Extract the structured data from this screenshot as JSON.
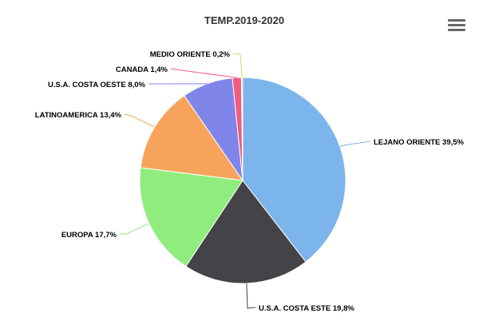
{
  "chart_data": {
    "type": "pie",
    "title": "TEMP.2019-2020",
    "slices": [
      {
        "name": "LEJANO ORIENTE",
        "value": 39.5,
        "label": "LEJANO ORIENTE 39,5%",
        "color": "#7cb5ec"
      },
      {
        "name": "U.S.A. COSTA ESTE",
        "value": 19.8,
        "label": "U.S.A. COSTA ESTE 19,8%",
        "color": "#434348"
      },
      {
        "name": "EUROPA",
        "value": 17.7,
        "label": "EUROPA 17,7%",
        "color": "#90ed7d"
      },
      {
        "name": "LATINOAMERICA",
        "value": 13.4,
        "label": "LATINOAMERICA 13,4%",
        "color": "#f7a35c"
      },
      {
        "name": "U.S.A. COSTA OESTE",
        "value": 8.0,
        "label": "U.S.A. COSTA OESTE 8,0%",
        "color": "#8085e9"
      },
      {
        "name": "CANADA",
        "value": 1.4,
        "label": "CANADA 1,4%",
        "color": "#f15c80"
      },
      {
        "name": "MEDIO ORIENTE",
        "value": 0.2,
        "label": "MEDIO ORIENTE 0,2%",
        "color": "#e4d354"
      }
    ]
  },
  "menu": {
    "icon": "hamburger-menu-icon"
  }
}
